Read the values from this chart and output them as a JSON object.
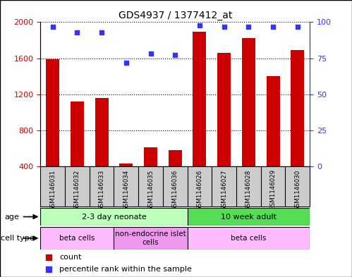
{
  "title": "GDS4937 / 1377412_at",
  "samples": [
    "GSM1146031",
    "GSM1146032",
    "GSM1146033",
    "GSM1146034",
    "GSM1146035",
    "GSM1146036",
    "GSM1146026",
    "GSM1146027",
    "GSM1146028",
    "GSM1146029",
    "GSM1146030"
  ],
  "counts": [
    1590,
    1120,
    1160,
    430,
    610,
    580,
    1890,
    1660,
    1820,
    1400,
    1690
  ],
  "percentiles": [
    97,
    93,
    93,
    72,
    78,
    77,
    98,
    97,
    97,
    97,
    97
  ],
  "ylim_left": [
    400,
    2000
  ],
  "ylim_right": [
    0,
    100
  ],
  "yticks_left": [
    400,
    800,
    1200,
    1600,
    2000
  ],
  "yticks_right": [
    0,
    25,
    50,
    75,
    100
  ],
  "bar_color": "#cc0000",
  "dot_color": "#3333ff",
  "age_groups": [
    {
      "label": "2-3 day neonate",
      "start": 0,
      "end": 6,
      "color": "#bbffbb"
    },
    {
      "label": "10 week adult",
      "start": 6,
      "end": 11,
      "color": "#55dd55"
    }
  ],
  "cell_type_groups": [
    {
      "label": "beta cells",
      "start": 0,
      "end": 3,
      "color": "#ffbbff"
    },
    {
      "label": "non-endocrine islet\ncells",
      "start": 3,
      "end": 6,
      "color": "#ee99ee"
    },
    {
      "label": "beta cells",
      "start": 6,
      "end": 11,
      "color": "#ffbbff"
    }
  ],
  "legend_items": [
    {
      "color": "#cc0000",
      "label": "count"
    },
    {
      "color": "#3333ff",
      "label": "percentile rank within the sample"
    }
  ],
  "grid_color": "black",
  "tick_label_color_left": "#cc0000",
  "tick_label_color_right": "#3333ff",
  "bar_width": 0.55,
  "sample_box_color": "#cccccc"
}
